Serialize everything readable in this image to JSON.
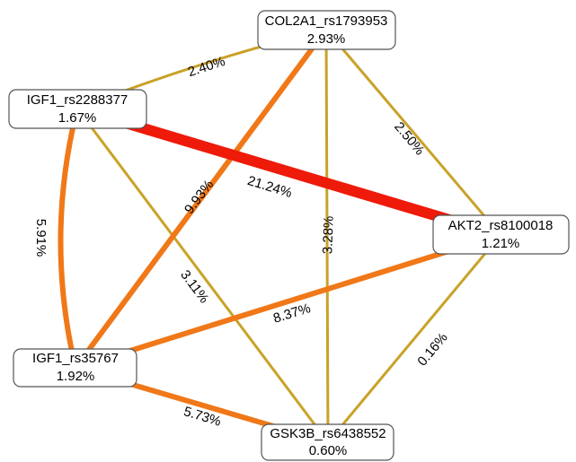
{
  "nodes": [
    {
      "name": "COL2A1_rs1793953",
      "value": "2.93%"
    },
    {
      "name": "IGF1_rs2288377",
      "value": "1.67%"
    },
    {
      "name": "AKT2_rs8100018",
      "value": "1.21%"
    },
    {
      "name": "IGF1_rs35767",
      "value": "1.92%"
    },
    {
      "name": "GSK3B_rs6438552",
      "value": "0.60%"
    }
  ],
  "edges": [
    {
      "label": "2.40%"
    },
    {
      "label": "2.50%"
    },
    {
      "label": "21.24%"
    },
    {
      "label": "9.93%"
    },
    {
      "label": "3.28%"
    },
    {
      "label": "5.91%"
    },
    {
      "label": "3.11%"
    },
    {
      "label": "8.37%"
    },
    {
      "label": "0.16%"
    },
    {
      "label": "5.73%"
    }
  ]
}
